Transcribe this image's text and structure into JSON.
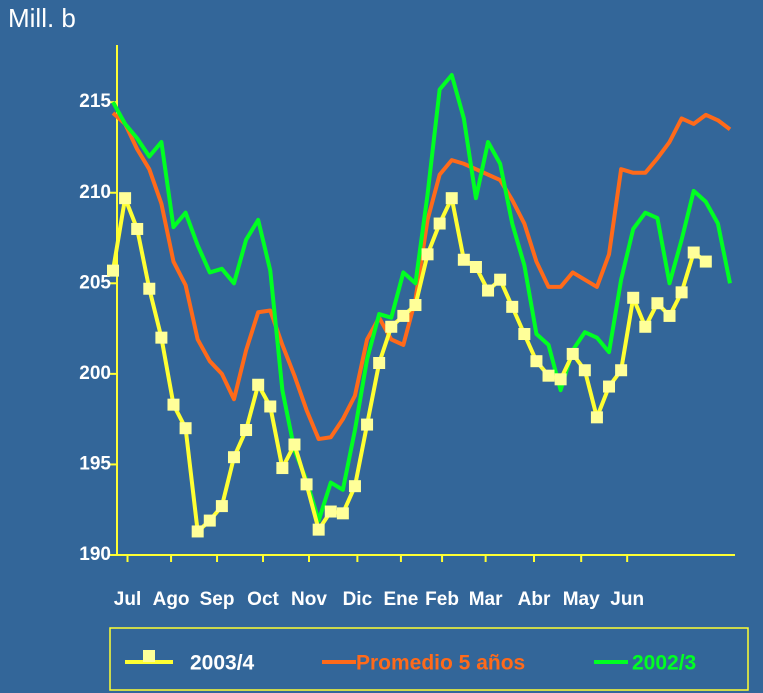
{
  "chart_data": {
    "type": "line",
    "y_label": "Mill. b",
    "x": [
      1,
      2,
      3,
      4,
      5,
      6,
      7,
      8,
      9,
      10,
      11,
      12,
      13,
      14,
      15,
      16,
      17,
      18,
      19,
      20,
      21,
      22,
      23,
      24,
      25,
      26,
      27,
      28,
      29,
      30,
      31,
      32,
      33,
      34,
      35,
      36,
      37,
      38,
      39,
      40,
      41,
      42,
      43,
      44,
      45,
      46,
      47,
      48,
      49,
      50,
      51,
      52
    ],
    "xlim": [
      1,
      52
    ],
    "xticks": [
      {
        "value": 2.2,
        "label": "Jul"
      },
      {
        "value": 5.8,
        "label": "Ago"
      },
      {
        "value": 9.6,
        "label": "Sep"
      },
      {
        "value": 13.4,
        "label": "Oct"
      },
      {
        "value": 17.2,
        "label": "Nov"
      },
      {
        "value": 21.2,
        "label": "Dic"
      },
      {
        "value": 24.8,
        "label": "Ene"
      },
      {
        "value": 28.2,
        "label": "Feb"
      },
      {
        "value": 31.8,
        "label": "Mar"
      },
      {
        "value": 35.8,
        "label": "Abr"
      },
      {
        "value": 39.7,
        "label": "May"
      },
      {
        "value": 43.5,
        "label": "Jun"
      }
    ],
    "ylim": [
      190,
      216.5
    ],
    "yticks": [
      190,
      195,
      200,
      205,
      210,
      215
    ],
    "legend_position": "bottom",
    "series": [
      {
        "name": "2003/4",
        "color": "#ffff33",
        "marker": "square",
        "values": [
          205.7,
          209.7,
          208.0,
          204.7,
          202.0,
          198.3,
          197.0,
          191.3,
          191.9,
          192.7,
          195.4,
          196.9,
          199.4,
          198.2,
          194.8,
          196.1,
          193.9,
          191.4,
          192.4,
          192.3,
          193.8,
          197.2,
          200.6,
          202.6,
          203.2,
          203.8,
          206.6,
          208.3,
          209.7,
          206.3,
          205.9,
          204.6,
          205.2,
          203.7,
          202.2,
          200.7,
          199.9,
          199.7,
          201.1,
          200.2,
          197.6,
          199.3,
          200.2,
          204.2,
          202.6,
          203.9,
          203.2,
          204.5,
          206.7,
          206.2,
          null,
          null
        ]
      },
      {
        "name": "Promedio 5 años",
        "color": "#ff6a1a",
        "values": [
          214.4,
          213.8,
          212.4,
          211.3,
          209.4,
          206.2,
          204.9,
          201.9,
          200.7,
          200.0,
          198.6,
          201.3,
          203.4,
          203.5,
          201.6,
          199.9,
          198.0,
          196.4,
          196.5,
          197.5,
          198.8,
          201.9,
          203.1,
          201.9,
          201.6,
          204.1,
          208.5,
          211.0,
          211.8,
          211.6,
          211.3,
          211.0,
          210.7,
          209.6,
          208.3,
          206.2,
          204.8,
          204.8,
          205.6,
          205.2,
          204.8,
          206.6,
          211.3,
          211.1,
          211.1,
          211.9,
          212.8,
          214.1,
          213.8,
          214.3,
          214.0,
          213.5
        ]
      },
      {
        "name": "2002/3",
        "color": "#00ff22",
        "values": [
          215.0,
          213.8,
          213.0,
          212.0,
          212.8,
          208.1,
          208.9,
          207.1,
          205.6,
          205.8,
          205.0,
          207.4,
          208.5,
          205.7,
          199.1,
          195.8,
          194.1,
          191.9,
          194.0,
          193.6,
          196.9,
          200.8,
          203.3,
          203.1,
          205.6,
          205.0,
          209.9,
          215.7,
          216.5,
          214.1,
          209.7,
          212.8,
          211.6,
          208.3,
          206.0,
          202.2,
          201.6,
          199.1,
          201.3,
          202.3,
          202.0,
          201.2,
          205.2,
          208.0,
          208.9,
          208.6,
          205.0,
          207.4,
          210.1,
          209.5,
          208.3,
          205.0
        ]
      }
    ]
  }
}
